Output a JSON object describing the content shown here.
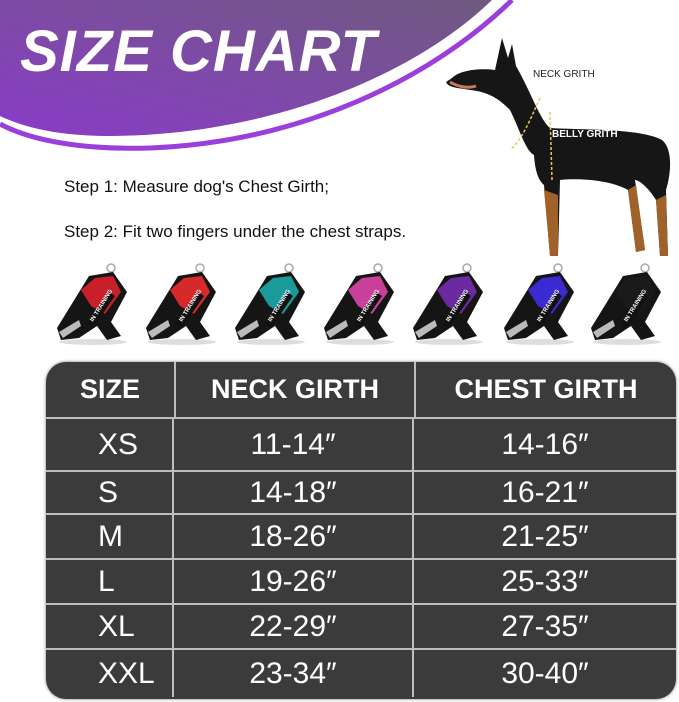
{
  "header": {
    "title": "SIZE CHART",
    "banner_color": "#7b3fb5",
    "accent_line_color": "#9b3fdc"
  },
  "steps": [
    "Step 1: Measure dog's Chest Girth;",
    "Step 2: Fit two fingers under the chest straps."
  ],
  "dog_image": {
    "neck_label": "NECK GRITH",
    "belly_label": "BELLY GRITH"
  },
  "harnesses": [
    {
      "color": "US flag / red",
      "hex": "#c8202a",
      "patch": "IN TRAINING"
    },
    {
      "color": "red",
      "hex": "#d62a2a",
      "patch": "IN TRAINING"
    },
    {
      "color": "teal",
      "hex": "#1a9a9a",
      "patch": "IN TRAINING"
    },
    {
      "color": "pink",
      "hex": "#c8409a",
      "patch": "IN TRAINING"
    },
    {
      "color": "purple",
      "hex": "#6a2aa0",
      "patch": "IN TRAINING"
    },
    {
      "color": "blue",
      "hex": "#3a2ad0",
      "patch": "IN TRAINING"
    },
    {
      "color": "black",
      "hex": "#1a1a1a",
      "patch": "IN TRAINING"
    }
  ],
  "table": {
    "headers": [
      "SIZE",
      "NECK GIRTH",
      "CHEST GIRTH"
    ],
    "rows": [
      [
        "XS",
        "11-14″",
        "14-16″"
      ],
      [
        "S",
        "14-18″",
        "16-21″"
      ],
      [
        "M",
        "18-26″",
        "21-25″"
      ],
      [
        "L",
        "19-26″",
        "25-33″"
      ],
      [
        "XL",
        "22-29″",
        "27-35″"
      ],
      [
        "XXL",
        "23-34″",
        "30-40″"
      ]
    ]
  }
}
